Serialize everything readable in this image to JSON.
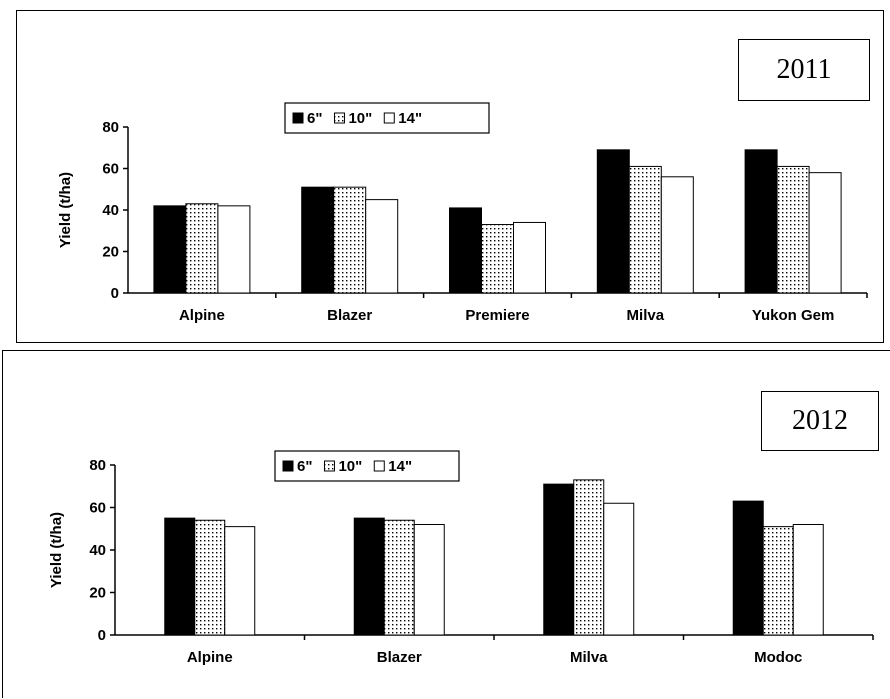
{
  "chart_data": [
    {
      "type": "bar",
      "title": "2011",
      "ylabel": "Yield (t/ha)",
      "xlabel": "",
      "ylim": [
        0,
        80
      ],
      "yticks": [
        0,
        20,
        40,
        60,
        80
      ],
      "legend_position": "top-left",
      "grid": false,
      "categories": [
        "Alpine",
        "Blazer",
        "Premiere",
        "Milva",
        "Yukon Gem"
      ],
      "series": [
        {
          "name": "6\"",
          "values": [
            42,
            51,
            41,
            69,
            69
          ],
          "fill": "#000000",
          "pattern": "solid"
        },
        {
          "name": "10\"",
          "values": [
            43,
            51,
            33,
            61,
            61
          ],
          "fill": "#ffffff",
          "pattern": "dotted"
        },
        {
          "name": "14\"",
          "values": [
            42,
            45,
            34,
            56,
            58
          ],
          "fill": "#ffffff",
          "pattern": "none"
        }
      ]
    },
    {
      "type": "bar",
      "title": "2012",
      "ylabel": "Yield (t/ha)",
      "xlabel": "",
      "ylim": [
        0,
        80
      ],
      "yticks": [
        0,
        20,
        40,
        60,
        80
      ],
      "legend_position": "top-left",
      "grid": false,
      "categories": [
        "Alpine",
        "Blazer",
        "Milva",
        "Modoc"
      ],
      "series": [
        {
          "name": "6\"",
          "values": [
            55,
            55,
            71,
            63
          ],
          "fill": "#000000",
          "pattern": "solid"
        },
        {
          "name": "10\"",
          "values": [
            54,
            54,
            73,
            51
          ],
          "fill": "#ffffff",
          "pattern": "dotted"
        },
        {
          "name": "14\"",
          "values": [
            51,
            52,
            62,
            52
          ],
          "fill": "#ffffff",
          "pattern": "none"
        }
      ]
    }
  ]
}
